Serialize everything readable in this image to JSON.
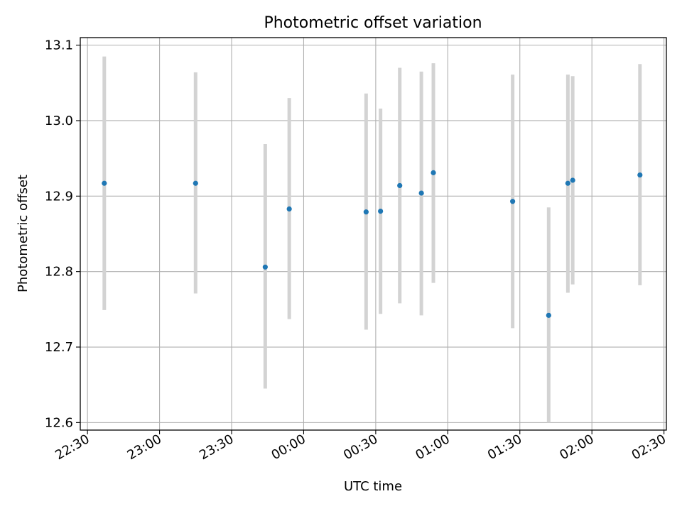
{
  "chart_data": {
    "type": "scatter",
    "title": "Photometric offset variation",
    "xlabel": "UTC time",
    "ylabel": "Photometric offset",
    "x_axis_type": "time",
    "xlim": [
      "22:27",
      "02:31"
    ],
    "ylim": [
      12.59,
      13.11
    ],
    "x_ticks": [
      "22:30",
      "23:00",
      "23:30",
      "00:00",
      "00:30",
      "01:00",
      "01:30",
      "02:00",
      "02:30"
    ],
    "y_ticks": [
      12.6,
      12.7,
      12.8,
      12.9,
      13.0,
      13.1
    ],
    "y_tick_labels": [
      "12.6",
      "12.7",
      "12.8",
      "12.9",
      "13.0",
      "13.1"
    ],
    "grid": true,
    "point_color": "#1f77b4",
    "errorbar_color": "#d3d3d3",
    "points": [
      {
        "x": "22:37",
        "y": 12.917,
        "ylow": 12.749,
        "yhigh": 13.085
      },
      {
        "x": "23:15",
        "y": 12.917,
        "ylow": 12.771,
        "yhigh": 13.064
      },
      {
        "x": "23:44",
        "y": 12.806,
        "ylow": 12.645,
        "yhigh": 12.969
      },
      {
        "x": "23:54",
        "y": 12.883,
        "ylow": 12.737,
        "yhigh": 13.03
      },
      {
        "x": "00:26",
        "y": 12.879,
        "ylow": 12.723,
        "yhigh": 13.036
      },
      {
        "x": "00:32",
        "y": 12.88,
        "ylow": 12.744,
        "yhigh": 13.016
      },
      {
        "x": "00:40",
        "y": 12.914,
        "ylow": 12.758,
        "yhigh": 13.07
      },
      {
        "x": "00:49",
        "y": 12.904,
        "ylow": 12.742,
        "yhigh": 13.065
      },
      {
        "x": "00:54",
        "y": 12.931,
        "ylow": 12.785,
        "yhigh": 13.076
      },
      {
        "x": "01:27",
        "y": 12.893,
        "ylow": 12.725,
        "yhigh": 13.061
      },
      {
        "x": "01:42",
        "y": 12.742,
        "ylow": 12.6,
        "yhigh": 12.885
      },
      {
        "x": "01:50",
        "y": 12.917,
        "ylow": 12.772,
        "yhigh": 13.061
      },
      {
        "x": "01:52",
        "y": 12.921,
        "ylow": 12.783,
        "yhigh": 13.059
      },
      {
        "x": "02:20",
        "y": 12.928,
        "ylow": 12.782,
        "yhigh": 13.075
      }
    ]
  }
}
